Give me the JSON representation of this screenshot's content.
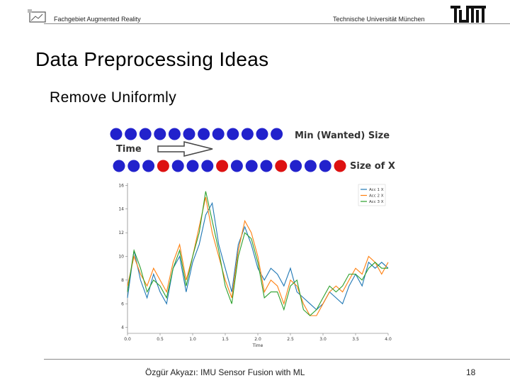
{
  "header": {
    "left_text": "Fachgebiet Augmented Reality",
    "right_text": "Technische Universität München",
    "logo_icon": "augmented-reality-logo-icon",
    "tum_logo_icon": "tum-logo-icon"
  },
  "slide": {
    "title": "Data Preprocessing Ideas",
    "subtitle": "Remove Uniformly"
  },
  "diagram": {
    "top_row_label": "Min (Wanted) Size",
    "bottom_row_label": "Size of X",
    "arrow_label": "Time",
    "top_row_count": 12,
    "bottom_row_count": 16,
    "red_indices": [
      3,
      7,
      11,
      15
    ],
    "colors": {
      "blue": "#2222cc",
      "red": "#dd1111"
    }
  },
  "chart_data": {
    "type": "line",
    "xlabel": "Time",
    "ylabel": "",
    "xlim": [
      0,
      4.0
    ],
    "ylim": [
      3.5,
      16.2
    ],
    "xticks": [
      "0.0",
      "0.5",
      "1.0",
      "1.5",
      "2.0",
      "2.5",
      "3.0",
      "3.5",
      "4.0"
    ],
    "yticks": [
      "4",
      "6",
      "8",
      "10",
      "12",
      "14",
      "16"
    ],
    "legend_position": "top-right",
    "series": [
      {
        "name": "Acc 1 X",
        "color": "#1f77b4",
        "values": [
          6.5,
          10.5,
          8.0,
          6.5,
          8.5,
          7.0,
          6.0,
          9.0,
          10.0,
          7.0,
          9.5,
          11.0,
          13.5,
          14.5,
          11.0,
          9.0,
          7.0,
          11.0,
          12.5,
          11.0,
          9.0,
          8.0,
          9.0,
          8.5,
          7.5,
          9.0,
          7.0,
          6.5,
          6.0,
          5.5,
          6.0,
          7.0,
          6.5,
          6.0,
          7.5,
          8.5,
          7.5,
          9.5,
          9.0,
          9.5,
          9.0
        ]
      },
      {
        "name": "Acc 2 X",
        "color": "#ff7f0e",
        "values": [
          7.5,
          10.0,
          8.5,
          7.5,
          9.0,
          8.0,
          7.0,
          9.5,
          11.0,
          8.0,
          10.0,
          12.5,
          15.0,
          12.0,
          10.0,
          8.0,
          6.5,
          10.5,
          13.0,
          12.0,
          10.0,
          7.0,
          8.0,
          7.5,
          6.0,
          8.0,
          7.5,
          6.0,
          5.0,
          5.0,
          6.0,
          7.0,
          7.5,
          7.0,
          8.0,
          9.0,
          8.5,
          10.0,
          9.5,
          8.5,
          9.5
        ]
      },
      {
        "name": "Acc 3 X",
        "color": "#2ca02c",
        "values": [
          7.0,
          10.5,
          9.0,
          7.0,
          8.0,
          7.5,
          6.5,
          9.0,
          10.5,
          7.5,
          10.0,
          12.0,
          15.5,
          13.0,
          10.5,
          7.5,
          6.0,
          10.0,
          12.0,
          11.5,
          9.5,
          6.5,
          7.0,
          7.0,
          5.5,
          7.5,
          8.0,
          5.5,
          5.0,
          5.5,
          6.5,
          7.5,
          7.0,
          7.5,
          8.5,
          8.5,
          8.0,
          9.0,
          9.5,
          9.0,
          9.0
        ]
      }
    ]
  },
  "footer": {
    "center_text": "Özgür Akyazı: IMU Sensor Fusion with ML",
    "page_number": "18"
  }
}
